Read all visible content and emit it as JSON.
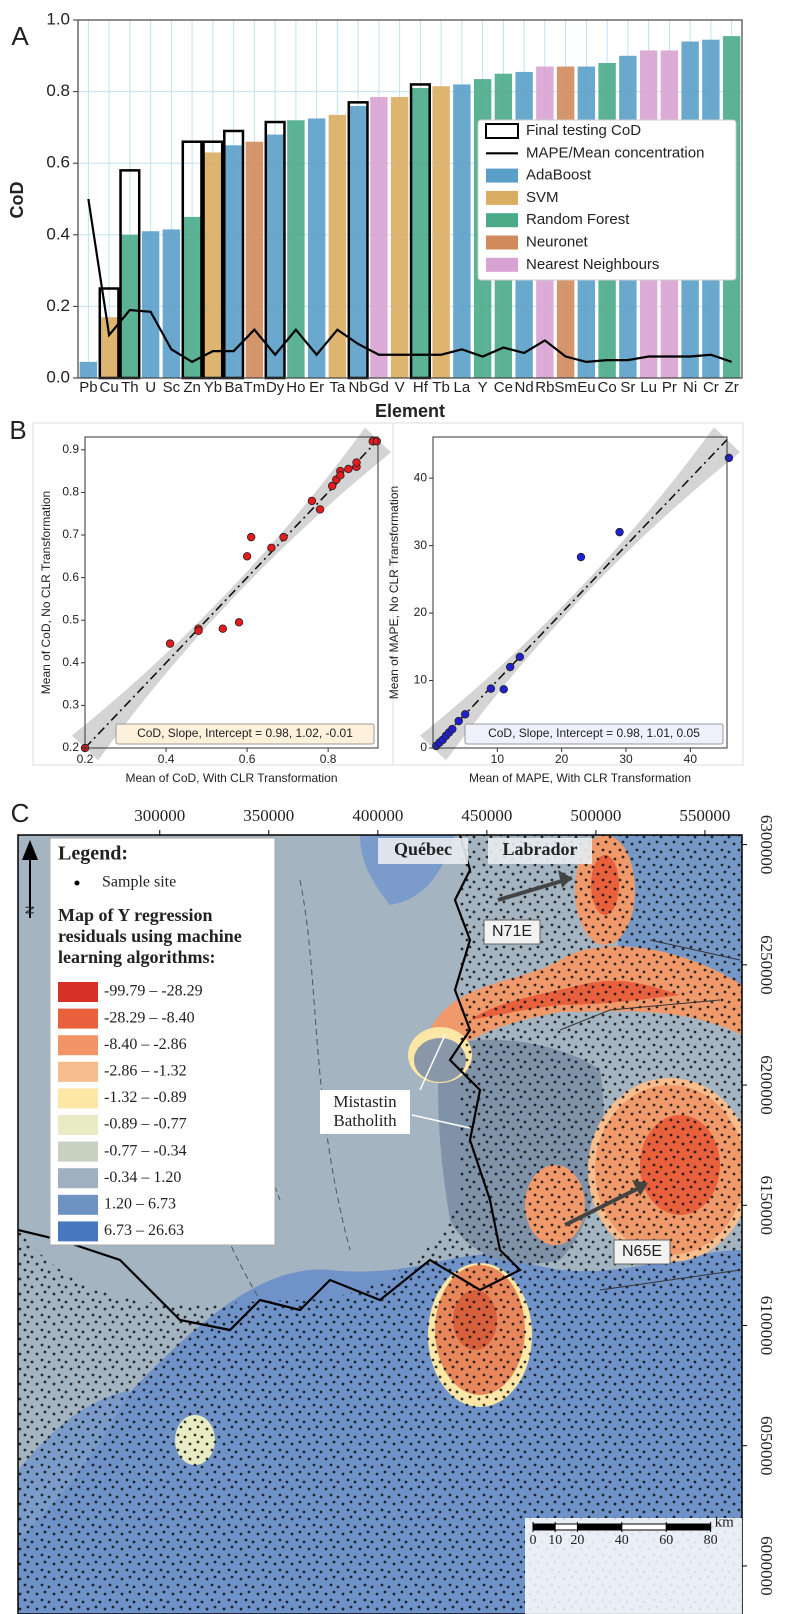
{
  "chart_data": [
    {
      "type": "bar",
      "panel_label": "A",
      "xlabel": "Element",
      "ylabel": "CoD",
      "categories": [
        "Pb",
        "Cu",
        "Th",
        "U",
        "Sc",
        "Zn",
        "Yb",
        "Ba",
        "Tm",
        "Dy",
        "Ho",
        "Er",
        "Ta",
        "Nb",
        "Gd",
        "V",
        "Hf",
        "Tb",
        "La",
        "Y",
        "Ce",
        "Nd",
        "Rb",
        "Sm",
        "Eu",
        "Co",
        "Sr",
        "Lu",
        "Pr",
        "Ni",
        "Cr",
        "Zr"
      ],
      "ylim": [
        0,
        1
      ],
      "yticks": [
        {
          "value": 0,
          "label": "0.0"
        },
        0.2,
        0.4,
        0.6,
        0.8,
        {
          "value": 1,
          "label": "1.0"
        }
      ],
      "grid": true,
      "legend_position": "center right",
      "series": [
        {
          "name": "Final testing CoD",
          "style": "outline",
          "color": "#000000",
          "values": [
            null,
            0.25,
            0.58,
            null,
            null,
            0.66,
            0.66,
            0.69,
            null,
            0.715,
            null,
            null,
            null,
            0.77,
            null,
            null,
            0.82,
            null,
            null,
            null,
            null,
            null,
            null,
            null,
            null,
            null,
            null,
            null,
            null,
            null,
            null,
            null
          ]
        },
        {
          "name": "MAPE/Mean concentration",
          "style": "line",
          "color": "#000000",
          "values": [
            0.5,
            0.12,
            0.19,
            0.185,
            0.08,
            0.045,
            0.075,
            0.075,
            0.135,
            0.065,
            0.135,
            0.065,
            0.135,
            0.095,
            0.065,
            0.065,
            0.065,
            0.065,
            0.08,
            0.06,
            0.085,
            0.07,
            0.105,
            0.06,
            0.045,
            0.05,
            0.05,
            0.06,
            0.06,
            0.06,
            0.065,
            0.045
          ]
        },
        {
          "name": "AdaBoost",
          "style": "bar",
          "color": "#5b9ec8",
          "values": [
            0.045,
            null,
            null,
            0.41,
            0.415,
            null,
            null,
            0.65,
            null,
            0.68,
            null,
            0.725,
            null,
            0.76,
            null,
            null,
            null,
            null,
            0.82,
            null,
            null,
            0.855,
            null,
            null,
            0.87,
            null,
            0.9,
            null,
            null,
            0.94,
            0.945,
            null
          ]
        },
        {
          "name": "SVM",
          "style": "bar",
          "color": "#d9ad62",
          "values": [
            null,
            0.17,
            null,
            null,
            null,
            null,
            0.63,
            null,
            null,
            null,
            null,
            null,
            0.735,
            null,
            null,
            0.785,
            null,
            0.815,
            null,
            null,
            null,
            null,
            null,
            null,
            null,
            null,
            null,
            null,
            null,
            null,
            null,
            null
          ]
        },
        {
          "name": "Random Forest",
          "style": "bar",
          "color": "#4aaa88",
          "values": [
            null,
            null,
            0.4,
            null,
            null,
            0.45,
            null,
            null,
            null,
            null,
            0.72,
            null,
            null,
            null,
            null,
            null,
            0.81,
            null,
            null,
            0.835,
            0.85,
            null,
            null,
            null,
            null,
            0.88,
            null,
            null,
            null,
            null,
            null,
            0.955
          ]
        },
        {
          "name": "Neuronet",
          "style": "bar",
          "color": "#d08b5c",
          "values": [
            null,
            null,
            null,
            null,
            null,
            null,
            null,
            null,
            0.66,
            null,
            null,
            null,
            null,
            null,
            null,
            null,
            null,
            null,
            null,
            null,
            null,
            null,
            null,
            0.87,
            null,
            null,
            null,
            null,
            null,
            null,
            null,
            null
          ]
        },
        {
          "name": "Nearest Neighbours",
          "style": "bar",
          "color": "#d8a2d2",
          "values": [
            null,
            null,
            null,
            null,
            null,
            null,
            null,
            null,
            null,
            null,
            null,
            null,
            null,
            null,
            0.785,
            null,
            null,
            null,
            null,
            null,
            null,
            null,
            0.87,
            null,
            null,
            null,
            null,
            0.915,
            0.915,
            null,
            null,
            null
          ]
        }
      ]
    },
    {
      "type": "scatter",
      "panel_label": "B",
      "xlabel": "Mean of CoD, With CLR Transformation",
      "ylabel": "Mean of CoD, No CLR Transformation",
      "annotation": "CoD, Slope, Intercept = 0.98, 1.02, -0.01",
      "color": "#e41a1c",
      "x": [
        0.2,
        0.41,
        0.48,
        0.48,
        0.54,
        0.58,
        0.6,
        0.61,
        0.66,
        0.69,
        0.76,
        0.78,
        0.81,
        0.82,
        0.83,
        0.83,
        0.85,
        0.87,
        0.87,
        0.91,
        0.92
      ],
      "values": [
        0.2,
        0.445,
        0.48,
        0.475,
        0.48,
        0.495,
        0.65,
        0.695,
        0.67,
        0.695,
        0.78,
        0.76,
        0.815,
        0.83,
        0.85,
        0.84,
        0.855,
        0.86,
        0.87,
        0.92,
        0.92
      ],
      "xlim": [
        0.2,
        0.923
      ],
      "xticks": [
        0.2,
        0.4,
        0.6,
        0.8
      ],
      "ylim": [
        0.2,
        0.93
      ],
      "yticks": [
        0.2,
        0.3,
        0.4,
        0.5,
        0.6,
        0.7,
        0.8,
        0.9
      ]
    },
    {
      "type": "scatter",
      "xlabel": "Mean of MAPE, With CLR Transformation",
      "ylabel": "Mean of MAPE, No CLR Transformation",
      "annotation": "CoD, Slope, Intercept = 0.98, 1.01, 0.05",
      "color": "#2020d0",
      "x": [
        0.5,
        1,
        1.5,
        2,
        2.5,
        3,
        4,
        5,
        9,
        11,
        12,
        13.5,
        23,
        29,
        46
      ],
      "values": [
        0.3,
        0.8,
        1.2,
        1.8,
        2.3,
        2.8,
        4,
        5,
        8.8,
        8.7,
        12,
        13.5,
        28.3,
        32,
        43
      ],
      "xlim": [
        0,
        45.7
      ],
      "xticks": [
        10,
        20,
        30,
        40
      ],
      "ylim": [
        0,
        46.1
      ],
      "yticks": [
        0,
        10,
        20,
        30,
        40
      ]
    }
  ],
  "map": {
    "panel_label": "C",
    "xlim": [
      235000,
      567000
    ],
    "xticks": [
      300000,
      350000,
      400000,
      450000,
      500000,
      550000
    ],
    "ylim": [
      5980000,
      6304000
    ],
    "yticks": [
      6000000,
      6050000,
      6100000,
      6150000,
      6200000,
      6250000,
      6300000
    ],
    "north": "N",
    "legend": {
      "title": "Legend:",
      "sample_label": "Sample site",
      "heading": [
        "Map of Y regression",
        "residuals using machine",
        "learning algorithms:"
      ],
      "classes": [
        {
          "label": "-99.79 – -28.29",
          "color": "#d73027"
        },
        {
          "label": "-28.29 – -8.40",
          "color": "#e8603c"
        },
        {
          "label": "-8.40 – -2.86",
          "color": "#f29468"
        },
        {
          "label": "-2.86 – -1.32",
          "color": "#f7bd8c"
        },
        {
          "label": "-1.32 – -0.89",
          "color": "#fde7a6"
        },
        {
          "label": "-0.89 – -0.77",
          "color": "#e7ecc2"
        },
        {
          "label": "-0.77 – -0.34",
          "color": "#c8d0c0"
        },
        {
          "label": "-0.34 – 1.20",
          "color": "#9fb0c0"
        },
        {
          "label": "1.20 – 6.73",
          "color": "#6e92c2"
        },
        {
          "label": "6.73 – 26.63",
          "color": "#4a78c0"
        }
      ]
    },
    "labels": {
      "quebec": "Québec",
      "labrador": "Labrador",
      "n71e": "N71E",
      "n65e": "N65E",
      "batholith": [
        "Mistastin",
        "Batholith"
      ]
    },
    "scale_bar": {
      "unit": "km",
      "ticks": [
        0,
        10,
        20,
        40,
        60,
        80
      ]
    }
  }
}
